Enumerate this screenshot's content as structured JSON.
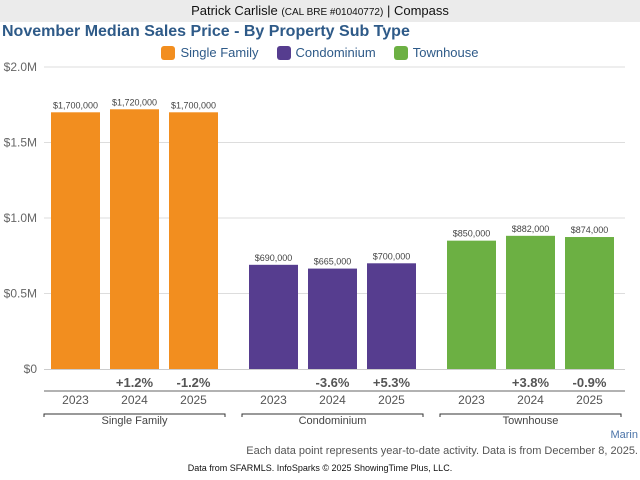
{
  "header": {
    "agent_name": "Patrick Carlisle",
    "license": "(CAL BRE #01040772)",
    "separator": "|",
    "brokerage": "Compass"
  },
  "colors": {
    "single_family": "#f28e1f",
    "condominium": "#563d8f",
    "townhouse": "#6cb043",
    "title": "#2e5a88"
  },
  "chart_data": {
    "type": "bar",
    "title": "November Median Sales Price - By Property Sub Type",
    "xlabel": "",
    "ylabel": "",
    "ylim": [
      0,
      2000000
    ],
    "y_ticks": [
      {
        "value": 0,
        "label": "$0"
      },
      {
        "value": 500000,
        "label": "$0.5M"
      },
      {
        "value": 1000000,
        "label": "$1.0M"
      },
      {
        "value": 1500000,
        "label": "$1.5M"
      },
      {
        "value": 2000000,
        "label": "$2.0M"
      }
    ],
    "grid": true,
    "legend_position": "top-center",
    "legend": [
      "Single Family",
      "Condominium",
      "Townhouse"
    ],
    "groups": [
      {
        "name": "Single Family",
        "color_key": "single_family",
        "bars": [
          {
            "year": "2023",
            "value": 1700000,
            "label": "$1,700,000",
            "change": ""
          },
          {
            "year": "2024",
            "value": 1720000,
            "label": "$1,720,000",
            "change": "+1.2%"
          },
          {
            "year": "2025",
            "value": 1700000,
            "label": "$1,700,000",
            "change": "-1.2%"
          }
        ]
      },
      {
        "name": "Condominium",
        "color_key": "condominium",
        "bars": [
          {
            "year": "2023",
            "value": 690000,
            "label": "$690,000",
            "change": ""
          },
          {
            "year": "2024",
            "value": 665000,
            "label": "$665,000",
            "change": "-3.6%"
          },
          {
            "year": "2025",
            "value": 700000,
            "label": "$700,000",
            "change": "+5.3%"
          }
        ]
      },
      {
        "name": "Townhouse",
        "color_key": "townhouse",
        "bars": [
          {
            "year": "2023",
            "value": 850000,
            "label": "$850,000",
            "change": ""
          },
          {
            "year": "2024",
            "value": 882000,
            "label": "$882,000",
            "change": "+3.8%"
          },
          {
            "year": "2025",
            "value": 874000,
            "label": "$874,000",
            "change": "-0.9%"
          }
        ]
      }
    ]
  },
  "footer": {
    "region": "Marin",
    "note": "Each data point represents year-to-date activity. Data is from December 8, 2025.",
    "source": "Data from SFARMLS. InfoSparks © 2025 ShowingTime Plus, LLC."
  }
}
